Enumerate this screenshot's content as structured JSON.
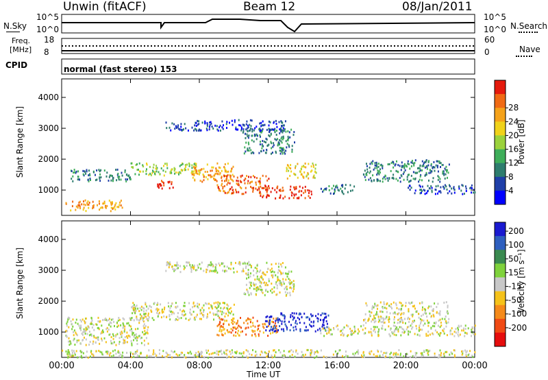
{
  "header": {
    "station": "Unwin (fitACF)",
    "beam": "Beam 12",
    "date": "08/Jan/2011"
  },
  "noise_panel": {
    "left_label": "N.Sky",
    "right_label": "N.Search",
    "left_ticks": [
      "10^5",
      "10^0"
    ],
    "right_ticks": [
      "10^5",
      "10^0"
    ]
  },
  "freq_panel": {
    "left_label_top": "Freq.",
    "left_label_bottom": "[MHz]",
    "right_label": "Nave",
    "left_ticks": [
      "18",
      "8"
    ],
    "right_ticks": [
      "60",
      "0"
    ]
  },
  "cpid_panel": {
    "label": "CPID",
    "value": "normal (fast stereo) 153"
  },
  "chart_data": [
    {
      "type": "heatmap",
      "name": "power",
      "ylabel": "Slant Range [km]",
      "yticks": [
        "1000",
        "2000",
        "3000",
        "4000"
      ],
      "ylim": [
        180,
        4600
      ],
      "xlim": [
        0,
        24
      ],
      "colorbar": {
        "label": "Power [dB]",
        "ticks": [
          "4",
          "8",
          "12",
          "16",
          "20",
          "24",
          "28"
        ],
        "colors": [
          "#0000ff",
          "#1f3fa8",
          "#2e7d6e",
          "#3fae5a",
          "#9bd23c",
          "#f0d21a",
          "#f5a21a",
          "#f06a14",
          "#e51a0d"
        ]
      },
      "regions": [
        {
          "x": [
            0.2,
            3.5
          ],
          "y": [
            350,
            700
          ],
          "level": 6
        },
        {
          "x": [
            0.5,
            4.0
          ],
          "y": [
            1300,
            1700
          ],
          "level": 2
        },
        {
          "x": [
            4.0,
            8.0
          ],
          "y": [
            1500,
            1900
          ],
          "level": 4
        },
        {
          "x": [
            5.5,
            6.5
          ],
          "y": [
            1050,
            1350
          ],
          "level": 8
        },
        {
          "x": [
            7.5,
            10.0
          ],
          "y": [
            1300,
            1900
          ],
          "level": 6
        },
        {
          "x": [
            9.0,
            12.0
          ],
          "y": [
            900,
            1500
          ],
          "level": 7
        },
        {
          "x": [
            11.5,
            14.5
          ],
          "y": [
            750,
            1150
          ],
          "level": 8
        },
        {
          "x": [
            13.0,
            14.8
          ],
          "y": [
            1400,
            1900
          ],
          "level": 5
        },
        {
          "x": [
            10.5,
            13.5
          ],
          "y": [
            2200,
            3000
          ],
          "level": 2
        },
        {
          "x": [
            6.0,
            13.0
          ],
          "y": [
            2950,
            3300
          ],
          "level": 1
        },
        {
          "x": [
            15.0,
            17.0
          ],
          "y": [
            900,
            1200
          ],
          "level": 2
        },
        {
          "x": [
            17.5,
            22.5
          ],
          "y": [
            1300,
            2000
          ],
          "level": 2
        },
        {
          "x": [
            20.0,
            24.0
          ],
          "y": [
            900,
            1200
          ],
          "level": 1
        }
      ]
    },
    {
      "type": "heatmap",
      "name": "velocity",
      "ylabel": "Slant Range [km]",
      "yticks": [
        "1000",
        "2000",
        "3000",
        "4000"
      ],
      "ylim": [
        180,
        4600
      ],
      "xlim": [
        0,
        24
      ],
      "xlabel": "Time UT",
      "xticks": [
        "00:00",
        "04:00",
        "08:00",
        "12:00",
        "16:00",
        "20:00",
        "00:00"
      ],
      "colorbar": {
        "label": "Velocity [m s⁻¹]",
        "ticks": [
          "200",
          "100",
          "50",
          "15",
          "-15",
          "-50",
          "-100",
          "-200"
        ],
        "colors": [
          "#1a1ad0",
          "#2e5fbf",
          "#3a8a50",
          "#7fd23c",
          "#c8c8c8",
          "#f5c21a",
          "#f58a1a",
          "#f04a14",
          "#e50d0d"
        ]
      },
      "regions": [
        {
          "x": [
            0.2,
            5.0
          ],
          "y": [
            600,
            1500
          ],
          "level": 4
        },
        {
          "x": [
            4.0,
            10.0
          ],
          "y": [
            1400,
            2000
          ],
          "level": 4
        },
        {
          "x": [
            9.0,
            12.5
          ],
          "y": [
            900,
            1500
          ],
          "level": 6
        },
        {
          "x": [
            11.8,
            15.5
          ],
          "y": [
            1050,
            1650
          ],
          "level": 0
        },
        {
          "x": [
            10.5,
            13.5
          ],
          "y": [
            2200,
            3000
          ],
          "level": 4
        },
        {
          "x": [
            6.0,
            13.0
          ],
          "y": [
            2950,
            3300
          ],
          "level": 4
        },
        {
          "x": [
            17.5,
            22.5
          ],
          "y": [
            1300,
            2000
          ],
          "level": 4
        },
        {
          "x": [
            15.0,
            24.0
          ],
          "y": [
            900,
            1250
          ],
          "level": 4
        },
        {
          "x": [
            0.0,
            24.0
          ],
          "y": [
            200,
            450
          ],
          "level": 4
        }
      ]
    }
  ]
}
